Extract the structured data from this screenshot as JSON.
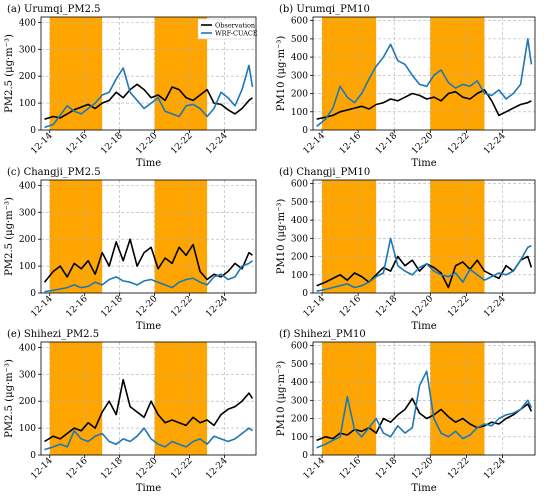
{
  "colors": {
    "observation": "#000000",
    "model": "#1f77b4",
    "shade": "#FFA500",
    "grid": "#b0b0b0"
  },
  "legend": {
    "placement": "top-right of panel (a)",
    "observation": "Observation",
    "model": "WRF-CUACE"
  },
  "chart_data": [
    {
      "type": "line",
      "title": "(a) Urumqi_PM2.5",
      "xlabel": "Time",
      "ylabel": "PM2.5 (μg·m⁻³)",
      "xlim": [
        13.5,
        25.8
      ],
      "ylim": [
        0,
        420
      ],
      "yticks": [
        0,
        100,
        200,
        300,
        400
      ],
      "xticks": [
        "12-14",
        "12-16",
        "12-18",
        "12-20",
        "12-22",
        "12-24"
      ],
      "shaded_periods": [
        [
          14,
          17
        ],
        [
          20,
          23
        ]
      ],
      "grid": true,
      "series": [
        {
          "name": "Observation",
          "x": [
            13.7,
            14.2,
            14.6,
            15.0,
            15.4,
            15.8,
            16.2,
            16.6,
            17.0,
            17.4,
            17.8,
            18.2,
            18.6,
            19.0,
            19.4,
            19.8,
            20.2,
            20.6,
            21.0,
            21.4,
            21.8,
            22.2,
            22.6,
            23.0,
            23.4,
            23.8,
            24.2,
            24.6,
            25.0,
            25.4,
            25.6
          ],
          "y": [
            40,
            50,
            45,
            60,
            75,
            85,
            95,
            80,
            100,
            110,
            140,
            120,
            150,
            170,
            150,
            120,
            130,
            110,
            160,
            150,
            120,
            110,
            130,
            150,
            100,
            95,
            75,
            60,
            80,
            110,
            120
          ]
        },
        {
          "name": "WRF-CUACE",
          "x": [
            13.7,
            14.2,
            14.6,
            15.0,
            15.4,
            15.8,
            16.2,
            16.6,
            17.0,
            17.4,
            17.8,
            18.2,
            18.6,
            19.0,
            19.4,
            19.8,
            20.2,
            20.6,
            21.0,
            21.4,
            21.8,
            22.2,
            22.6,
            23.0,
            23.4,
            23.8,
            24.2,
            24.6,
            25.0,
            25.4,
            25.6
          ],
          "y": [
            10,
            20,
            55,
            90,
            70,
            60,
            80,
            100,
            130,
            140,
            190,
            230,
            140,
            110,
            80,
            100,
            120,
            70,
            60,
            50,
            90,
            95,
            80,
            50,
            80,
            140,
            120,
            90,
            150,
            240,
            160
          ]
        }
      ]
    },
    {
      "type": "line",
      "title": "(b) Urumqi_PM10",
      "xlabel": "Time",
      "ylabel": "PM10 (μg·m⁻³)",
      "xlim": [
        13.5,
        25.8
      ],
      "ylim": [
        0,
        620
      ],
      "yticks": [
        0,
        100,
        200,
        300,
        400,
        500,
        600
      ],
      "xticks": [
        "12-14",
        "12-16",
        "12-18",
        "12-20",
        "12-22",
        "12-24"
      ],
      "shaded_periods": [
        [
          14,
          17
        ],
        [
          20,
          23
        ]
      ],
      "grid": true,
      "series": [
        {
          "name": "Observation",
          "x": [
            13.7,
            14.2,
            14.6,
            15.0,
            15.4,
            15.8,
            16.2,
            16.6,
            17.0,
            17.4,
            17.8,
            18.2,
            18.6,
            19.0,
            19.4,
            19.8,
            20.2,
            20.6,
            21.0,
            21.4,
            21.8,
            22.2,
            22.6,
            23.0,
            23.4,
            23.8,
            24.2,
            24.6,
            25.0,
            25.4,
            25.6
          ],
          "y": [
            60,
            70,
            80,
            100,
            110,
            120,
            130,
            115,
            140,
            150,
            170,
            160,
            180,
            200,
            190,
            170,
            180,
            160,
            200,
            210,
            180,
            170,
            200,
            220,
            160,
            80,
            100,
            120,
            140,
            150,
            160
          ]
        },
        {
          "name": "WRF-CUACE",
          "x": [
            13.7,
            14.2,
            14.6,
            15.0,
            15.4,
            15.8,
            16.2,
            16.6,
            17.0,
            17.4,
            17.8,
            18.2,
            18.6,
            19.0,
            19.4,
            19.8,
            20.2,
            20.6,
            21.0,
            21.4,
            21.8,
            22.2,
            22.6,
            23.0,
            23.4,
            23.8,
            24.2,
            24.6,
            25.0,
            25.4,
            25.6
          ],
          "y": [
            20,
            60,
            120,
            240,
            180,
            150,
            200,
            280,
            350,
            400,
            470,
            380,
            360,
            300,
            250,
            240,
            300,
            330,
            260,
            230,
            250,
            240,
            270,
            200,
            190,
            220,
            170,
            200,
            250,
            500,
            360
          ]
        }
      ]
    },
    {
      "type": "line",
      "title": "(c) Changji_PM2.5",
      "xlabel": "Time",
      "ylabel": "PM2.5 (μg·m⁻³)",
      "xlim": [
        13.5,
        25.8
      ],
      "ylim": [
        0,
        420
      ],
      "yticks": [
        0,
        100,
        200,
        300,
        400
      ],
      "xticks": [
        "12-14",
        "12-16",
        "12-18",
        "12-20",
        "12-22",
        "12-24"
      ],
      "shaded_periods": [
        [
          14,
          17
        ],
        [
          20,
          23
        ]
      ],
      "grid": true,
      "series": [
        {
          "name": "Observation",
          "x": [
            13.7,
            14.2,
            14.6,
            15.0,
            15.4,
            15.8,
            16.2,
            16.6,
            17.0,
            17.4,
            17.8,
            18.2,
            18.6,
            19.0,
            19.4,
            19.8,
            20.2,
            20.6,
            21.0,
            21.4,
            21.8,
            22.2,
            22.6,
            23.0,
            23.4,
            23.8,
            24.2,
            24.6,
            25.0,
            25.4,
            25.6
          ],
          "y": [
            40,
            80,
            100,
            60,
            110,
            90,
            120,
            70,
            150,
            100,
            190,
            120,
            200,
            100,
            150,
            170,
            90,
            130,
            110,
            170,
            140,
            180,
            80,
            50,
            70,
            60,
            80,
            110,
            90,
            150,
            140
          ]
        },
        {
          "name": "WRF-CUACE",
          "x": [
            13.7,
            14.2,
            14.6,
            15.0,
            15.4,
            15.8,
            16.2,
            16.6,
            17.0,
            17.4,
            17.8,
            18.2,
            18.6,
            19.0,
            19.4,
            19.8,
            20.2,
            20.6,
            21.0,
            21.4,
            21.8,
            22.2,
            22.6,
            23.0,
            23.4,
            23.8,
            24.2,
            24.6,
            25.0,
            25.4,
            25.6
          ],
          "y": [
            5,
            10,
            15,
            20,
            30,
            20,
            25,
            40,
            30,
            50,
            60,
            45,
            40,
            30,
            45,
            50,
            40,
            30,
            20,
            40,
            50,
            55,
            40,
            30,
            60,
            70,
            50,
            60,
            100,
            110,
            120
          ]
        }
      ]
    },
    {
      "type": "line",
      "title": "(d) Changji_PM10",
      "xlabel": "Time",
      "ylabel": "PM10 (μg·m⁻³)",
      "xlim": [
        13.5,
        25.8
      ],
      "ylim": [
        0,
        620
      ],
      "yticks": [
        0,
        100,
        200,
        300,
        400,
        500,
        600
      ],
      "xticks": [
        "12-14",
        "12-16",
        "12-18",
        "12-20",
        "12-22",
        "12-24"
      ],
      "shaded_periods": [
        [
          14,
          17
        ],
        [
          20,
          23
        ]
      ],
      "grid": true,
      "series": [
        {
          "name": "Observation",
          "x": [
            13.7,
            14.2,
            14.6,
            15.0,
            15.4,
            15.8,
            16.2,
            16.6,
            17.0,
            17.4,
            17.8,
            18.2,
            18.6,
            19.0,
            19.4,
            19.8,
            20.2,
            20.6,
            21.0,
            21.4,
            21.8,
            22.2,
            22.6,
            23.0,
            23.4,
            23.8,
            24.2,
            24.6,
            25.0,
            25.4,
            25.6
          ],
          "y": [
            40,
            60,
            80,
            100,
            70,
            110,
            90,
            60,
            100,
            140,
            120,
            200,
            150,
            180,
            120,
            160,
            140,
            110,
            30,
            150,
            170,
            130,
            180,
            120,
            100,
            80,
            150,
            120,
            180,
            200,
            140
          ]
        },
        {
          "name": "WRF-CUACE",
          "x": [
            13.7,
            14.2,
            14.6,
            15.0,
            15.4,
            15.8,
            16.2,
            16.6,
            17.0,
            17.4,
            17.8,
            18.2,
            18.6,
            19.0,
            19.4,
            19.8,
            20.2,
            20.6,
            21.0,
            21.4,
            21.8,
            22.2,
            22.6,
            23.0,
            23.4,
            23.8,
            24.2,
            24.6,
            25.0,
            25.4,
            25.6
          ],
          "y": [
            10,
            20,
            30,
            40,
            50,
            30,
            40,
            60,
            90,
            110,
            300,
            150,
            120,
            100,
            140,
            160,
            120,
            100,
            90,
            110,
            60,
            130,
            100,
            70,
            90,
            110,
            100,
            120,
            180,
            250,
            260
          ]
        }
      ]
    },
    {
      "type": "line",
      "title": "(e) Shihezi_PM2.5",
      "xlabel": "Time",
      "ylabel": "PM2.5 (μg·m⁻³)",
      "xlim": [
        13.5,
        25.8
      ],
      "ylim": [
        0,
        420
      ],
      "yticks": [
        0,
        100,
        200,
        300,
        400
      ],
      "xticks": [
        "12-14",
        "12-16",
        "12-18",
        "12-20",
        "12-22",
        "12-24"
      ],
      "shaded_periods": [
        [
          14,
          17
        ],
        [
          20,
          23
        ]
      ],
      "grid": true,
      "series": [
        {
          "name": "Observation",
          "x": [
            13.7,
            14.2,
            14.6,
            15.0,
            15.4,
            15.8,
            16.2,
            16.6,
            17.0,
            17.4,
            17.8,
            18.2,
            18.6,
            19.0,
            19.4,
            19.8,
            20.2,
            20.6,
            21.0,
            21.4,
            21.8,
            22.2,
            22.6,
            23.0,
            23.4,
            23.8,
            24.2,
            24.6,
            25.0,
            25.4,
            25.6
          ],
          "y": [
            50,
            70,
            60,
            80,
            100,
            90,
            120,
            100,
            160,
            200,
            150,
            280,
            180,
            160,
            140,
            200,
            150,
            120,
            130,
            120,
            110,
            140,
            120,
            130,
            110,
            150,
            170,
            180,
            200,
            230,
            210
          ]
        },
        {
          "name": "WRF-CUACE",
          "x": [
            13.7,
            14.2,
            14.6,
            15.0,
            15.4,
            15.8,
            16.2,
            16.6,
            17.0,
            17.4,
            17.8,
            18.2,
            18.6,
            19.0,
            19.4,
            19.8,
            20.2,
            20.6,
            21.0,
            21.4,
            21.8,
            22.2,
            22.6,
            23.0,
            23.4,
            23.8,
            24.2,
            24.6,
            25.0,
            25.4,
            25.6
          ],
          "y": [
            20,
            30,
            40,
            30,
            90,
            60,
            50,
            70,
            80,
            50,
            40,
            60,
            50,
            70,
            100,
            60,
            40,
            30,
            50,
            40,
            30,
            50,
            60,
            40,
            70,
            60,
            50,
            60,
            80,
            100,
            90
          ]
        }
      ]
    },
    {
      "type": "line",
      "title": "(f) Shihezi_PM10",
      "xlabel": "Time",
      "ylabel": "PM10 (μg·m⁻³)",
      "xlim": [
        13.5,
        25.8
      ],
      "ylim": [
        0,
        620
      ],
      "yticks": [
        0,
        100,
        200,
        300,
        400,
        500,
        600
      ],
      "xticks": [
        "12-14",
        "12-16",
        "12-18",
        "12-20",
        "12-22",
        "12-24"
      ],
      "shaded_periods": [
        [
          14,
          17
        ],
        [
          20,
          23
        ]
      ],
      "grid": true,
      "series": [
        {
          "name": "Observation",
          "x": [
            13.7,
            14.2,
            14.6,
            15.0,
            15.4,
            15.8,
            16.2,
            16.6,
            17.0,
            17.4,
            17.8,
            18.2,
            18.6,
            19.0,
            19.4,
            19.8,
            20.2,
            20.6,
            21.0,
            21.4,
            21.8,
            22.2,
            22.6,
            23.0,
            23.4,
            23.8,
            24.2,
            24.6,
            25.0,
            25.4,
            25.6
          ],
          "y": [
            80,
            100,
            90,
            120,
            110,
            140,
            130,
            150,
            120,
            200,
            180,
            220,
            250,
            310,
            230,
            200,
            220,
            250,
            210,
            180,
            200,
            170,
            150,
            160,
            180,
            170,
            200,
            220,
            250,
            280,
            240
          ]
        },
        {
          "name": "WRF-CUACE",
          "x": [
            13.7,
            14.2,
            14.6,
            15.0,
            15.4,
            15.8,
            16.2,
            16.6,
            17.0,
            17.4,
            17.8,
            18.2,
            18.6,
            19.0,
            19.4,
            19.8,
            20.2,
            20.6,
            21.0,
            21.4,
            21.8,
            22.2,
            22.6,
            23.0,
            23.4,
            23.8,
            24.2,
            24.6,
            25.0,
            25.4,
            25.6
          ],
          "y": [
            40,
            60,
            80,
            100,
            320,
            140,
            100,
            150,
            200,
            120,
            100,
            160,
            120,
            150,
            380,
            460,
            200,
            120,
            100,
            130,
            90,
            110,
            150,
            170,
            160,
            200,
            220,
            230,
            250,
            300,
            260
          ]
        }
      ]
    }
  ]
}
